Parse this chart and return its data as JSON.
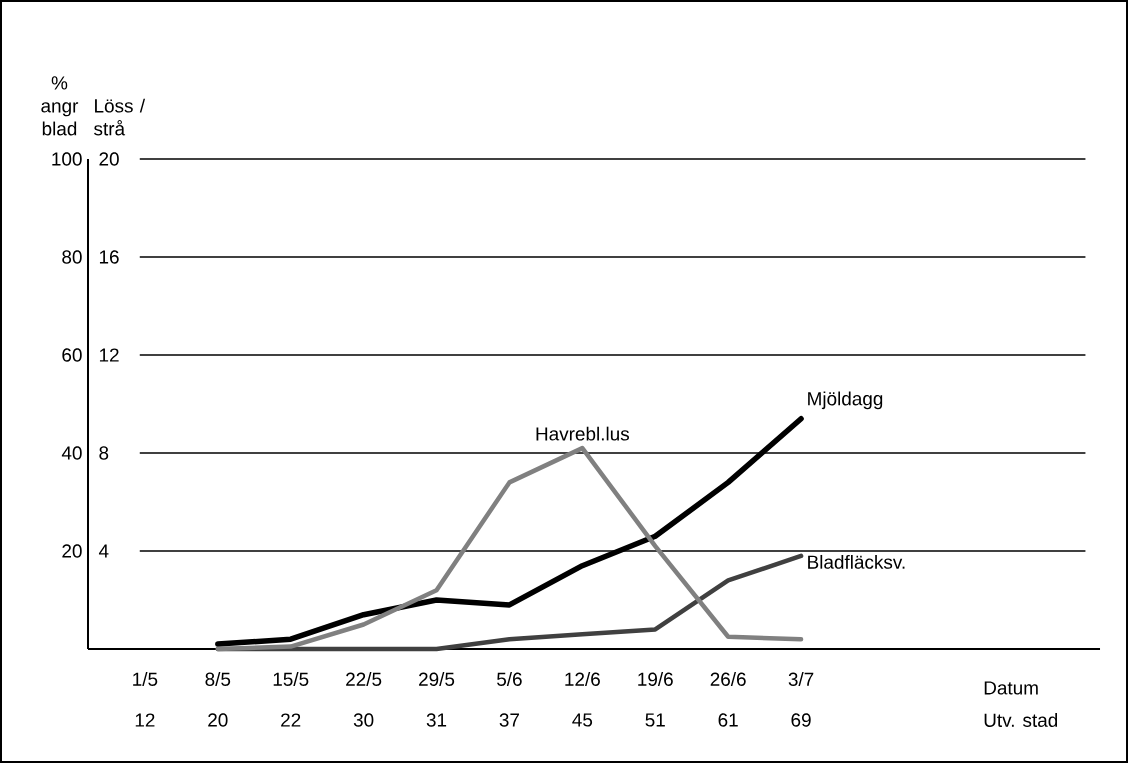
{
  "chart_data": {
    "type": "line",
    "categories": [
      "1/5",
      "8/5",
      "15/5",
      "22/5",
      "29/5",
      "5/6",
      "12/6",
      "19/6",
      "26/6",
      "3/7"
    ],
    "ylabel": "% angr blad",
    "y2label": "Löss / strå",
    "series": [
      {
        "name": "Havrebl.lus",
        "color": "#808080",
        "axis": "y2",
        "values": [
          null,
          0,
          0.1,
          1,
          2.4,
          6.8,
          8.2,
          4.2,
          0.5,
          0.4
        ]
      },
      {
        "name": "Bladfläcksv.",
        "color": "#404040",
        "values": [
          null,
          0,
          0,
          0,
          0,
          2,
          3,
          4,
          14,
          19
        ]
      },
      {
        "name": "Mjöldagg",
        "color": "#000000",
        "values": [
          null,
          1,
          2,
          7,
          10,
          9,
          17,
          23,
          34,
          47
        ]
      }
    ],
    "ylim": [
      0,
      100
    ],
    "yticks": [
      20,
      40,
      60,
      80,
      100
    ],
    "y2lim": [
      0,
      20
    ],
    "y2ticks": [
      4,
      8,
      12,
      16,
      20
    ],
    "grid": "y",
    "marker": "none",
    "line_style": "solid",
    "annotations": [
      "Datum",
      "Utv. stad",
      "12",
      "20",
      "22",
      "30",
      "31",
      "37",
      "45",
      "51",
      "61",
      "69"
    ]
  }
}
